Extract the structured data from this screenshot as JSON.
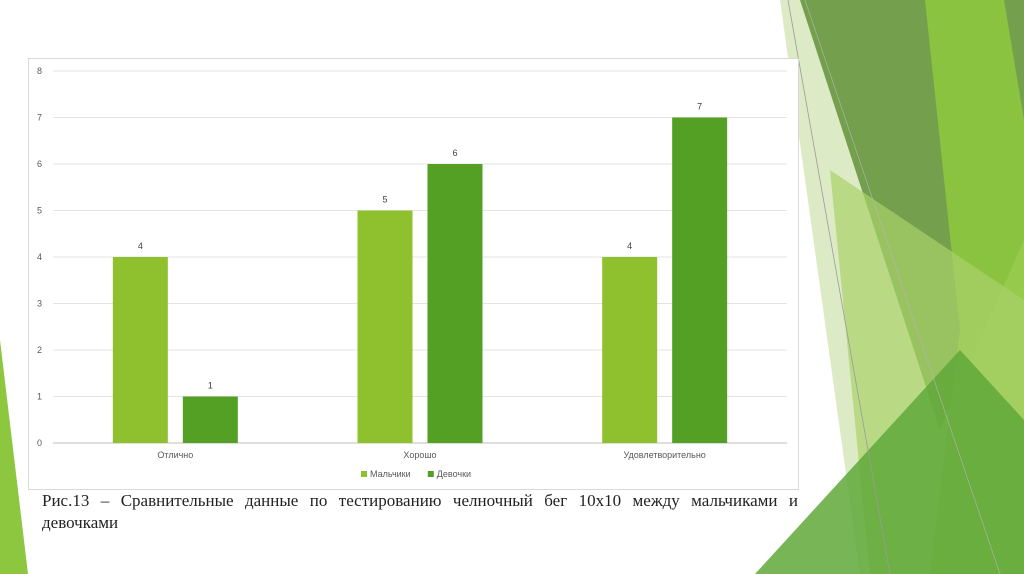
{
  "slide": {
    "caption": "Рис.13 – Сравнительные данные по тестированию челночный бег 10х10 между мальчиками и девочками",
    "palette": {
      "accent_light": "#8fc12f",
      "accent_dark": "#53a025",
      "deco_1": "#6b9b45",
      "deco_2": "#8dc63f",
      "deco_3": "#c8e2a4"
    }
  },
  "chart_data": {
    "type": "bar",
    "categories": [
      "Отлично",
      "Хорошо",
      "Удовлетворительно"
    ],
    "series": [
      {
        "name": "Мальчики",
        "values": [
          4,
          5,
          4
        ],
        "color": "#8fc12f"
      },
      {
        "name": "Девочки",
        "values": [
          1,
          6,
          7
        ],
        "color": "#53a025"
      }
    ],
    "ylim": [
      0,
      8
    ],
    "yticks": [
      0,
      1,
      2,
      3,
      4,
      5,
      6,
      7,
      8
    ],
    "grid": true,
    "data_labels": true,
    "legend": "bottom"
  }
}
